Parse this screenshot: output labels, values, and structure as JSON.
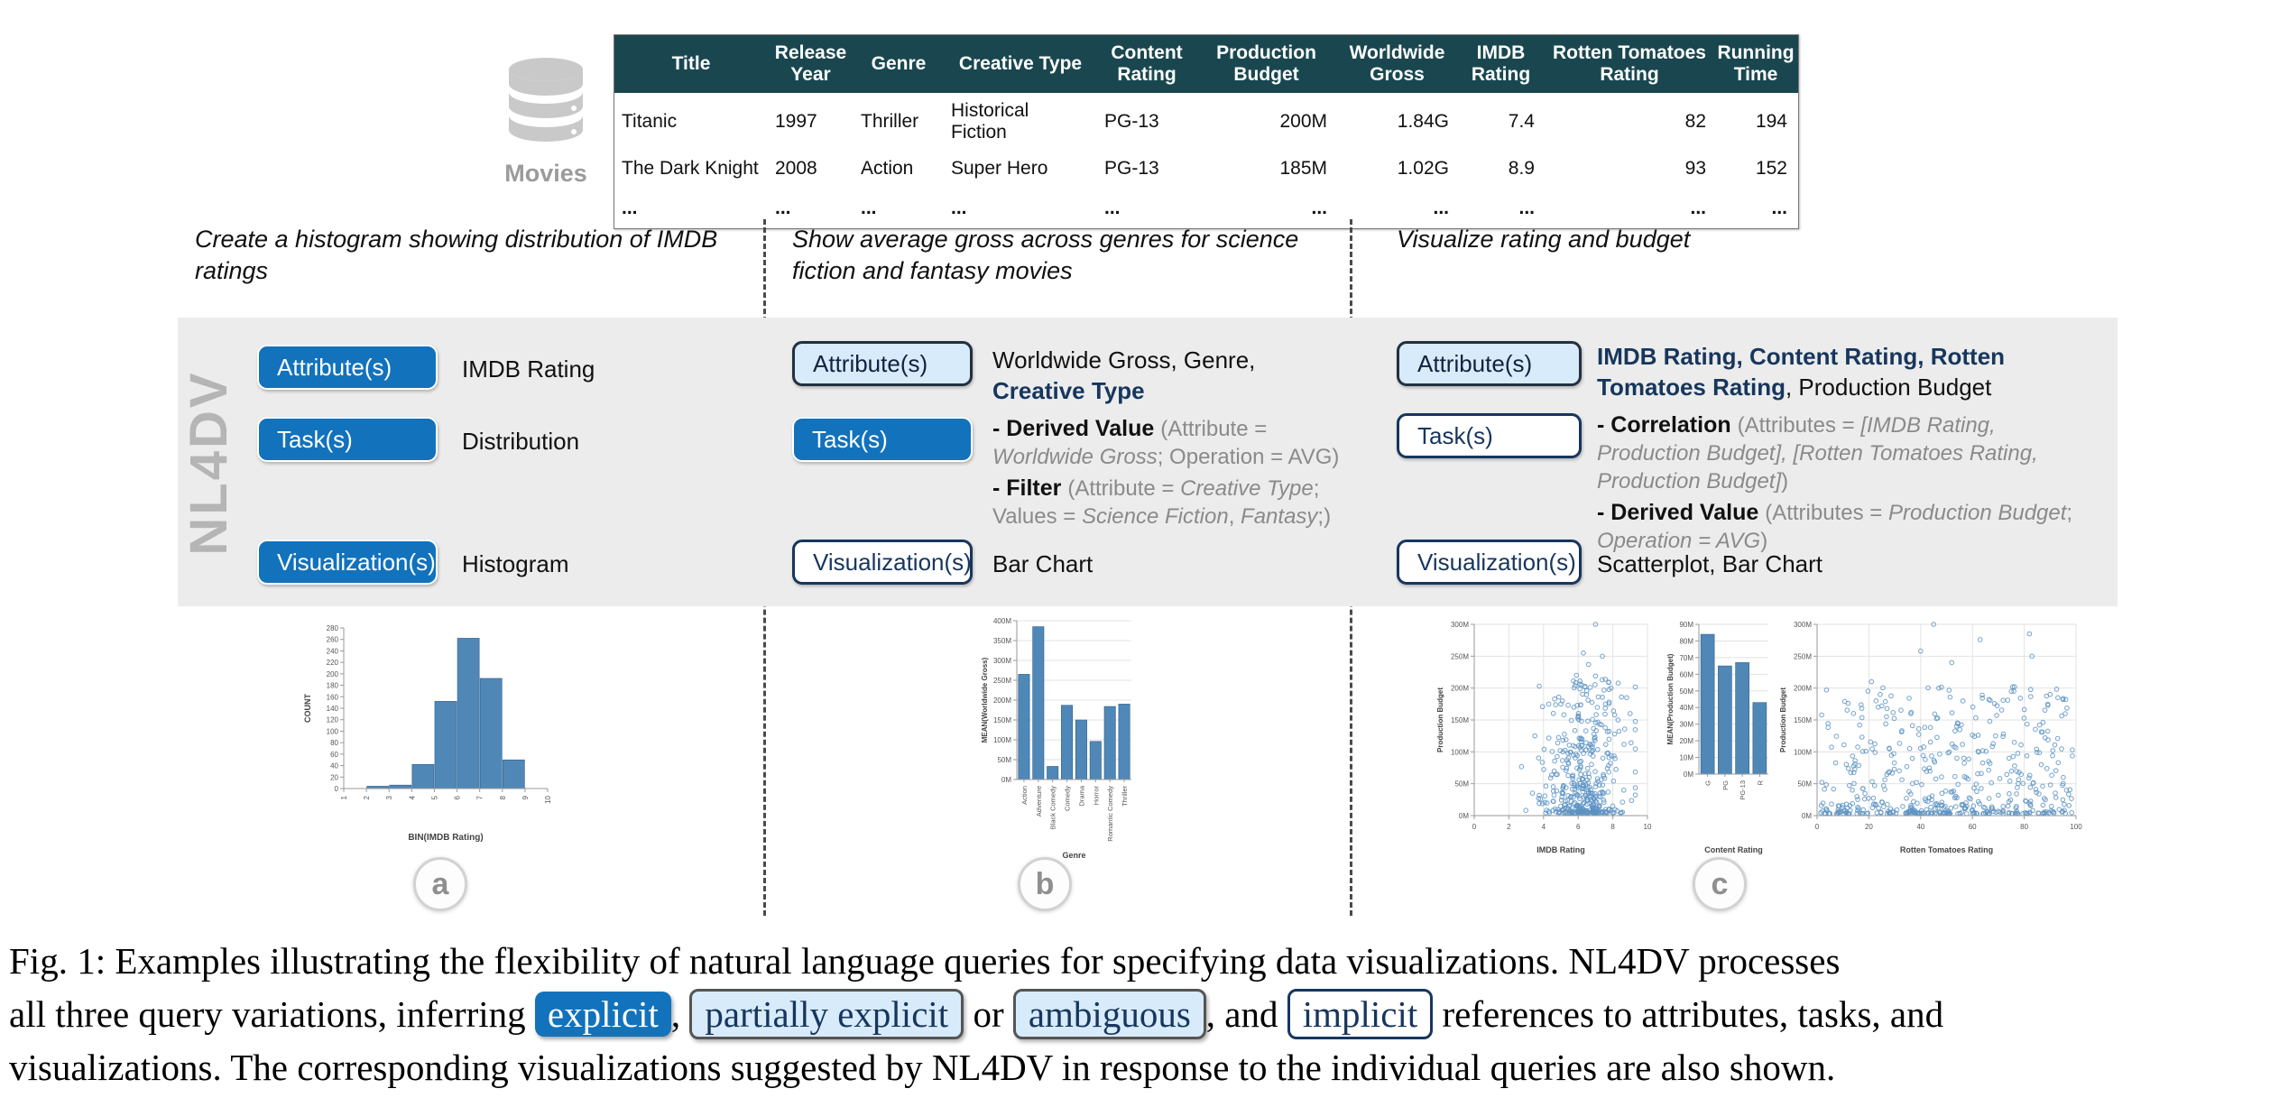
{
  "dataset": {
    "name": "Movies",
    "columns": [
      "Title",
      "Release Year",
      "Genre",
      "Creative Type",
      "Content Rating",
      "Production Budget",
      "Worldwide Gross",
      "IMDB Rating",
      "Rotten Tomatoes Rating",
      "Running Time"
    ],
    "rows": [
      [
        "Titanic",
        "1997",
        "Thriller",
        "Historical Fiction",
        "PG-13",
        "200M",
        "1.84G",
        "7.4",
        "82",
        "194"
      ],
      [
        "The Dark Knight",
        "2008",
        "Action",
        "Super Hero",
        "PG-13",
        "185M",
        "1.02G",
        "8.9",
        "93",
        "152"
      ],
      [
        "...",
        "...",
        "...",
        "...",
        "...",
        "...",
        "...",
        "...",
        "...",
        "..."
      ]
    ]
  },
  "system_label": "NL4DV",
  "box_labels": {
    "attributes": "Attribute(s)",
    "tasks": "Task(s)",
    "visualizations": "Visualization(s)"
  },
  "columns": [
    {
      "badge": "a",
      "query": "Create a histogram showing distribution of IMDB ratings",
      "box_styles": {
        "attributes": "explicit-solid",
        "tasks": "explicit-solid",
        "visualizations": "explicit-solid"
      },
      "attributes_value": [
        {
          "t": "IMDB Rating"
        }
      ],
      "tasks_value": [
        [
          {
            "t": "Distribution"
          }
        ]
      ],
      "visualizations_value": [
        {
          "t": "Histogram"
        }
      ]
    },
    {
      "badge": "b",
      "query": "Show average gross across genres for science fiction and fantasy movies",
      "box_styles": {
        "attributes": "partially-explicit-light",
        "tasks": "explicit-solid",
        "visualizations": "implicit-outline"
      },
      "attributes_value": [
        {
          "t": "Worldwide Gross, Genre,"
        },
        {
          "t": "\n"
        },
        {
          "t": "Creative Type",
          "s": "nb"
        }
      ],
      "tasks_value": [
        [
          {
            "t": "- Derived Value ",
            "s": "b"
          },
          {
            "t": "(Attribute = ",
            "s": "g"
          },
          {
            "t": "Worldwide Gross",
            "s": "gi"
          },
          {
            "t": "; Operation = AVG)",
            "s": "g"
          }
        ],
        [
          {
            "t": "- Filter ",
            "s": "b"
          },
          {
            "t": "(Attribute = ",
            "s": "g"
          },
          {
            "t": "Creative Type",
            "s": "gi"
          },
          {
            "t": "; Values = ",
            "s": "g"
          },
          {
            "t": "Science Fiction",
            "s": "gi"
          },
          {
            "t": ", ",
            "s": "g"
          },
          {
            "t": "Fantasy",
            "s": "gi"
          },
          {
            "t": ";)",
            "s": "g"
          }
        ]
      ],
      "visualizations_value": [
        {
          "t": "Bar Chart"
        }
      ]
    },
    {
      "badge": "c",
      "query": "Visualize rating and budget",
      "box_styles": {
        "attributes": "ambiguous-light",
        "tasks": "implicit-outline",
        "visualizations": "implicit-outline"
      },
      "attributes_value": [
        {
          "t": "IMDB Rating, Content Rating, Rotten Tomatoes Rating",
          "s": "nb"
        },
        {
          "t": ", Production Budget"
        }
      ],
      "tasks_value": [
        [
          {
            "t": "- Correlation ",
            "s": "b"
          },
          {
            "t": "(Attributes = ",
            "s": "g"
          },
          {
            "t": "[IMDB Rating, Production Budget], [Rotten Tomatoes Rating, Production Budget]",
            "s": "gi"
          },
          {
            "t": ")",
            "s": "g"
          }
        ],
        [
          {
            "t": "- Derived Value ",
            "s": "b"
          },
          {
            "t": "(Attributes = ",
            "s": "g"
          },
          {
            "t": "Production Budget",
            "s": "gi"
          },
          {
            "t": "; ",
            "s": "g"
          },
          {
            "t": "Operation = AVG",
            "s": "gi"
          },
          {
            "t": ")",
            "s": "g"
          }
        ]
      ],
      "visualizations_value": [
        {
          "t": "Scatterplot, Bar Chart"
        }
      ]
    }
  ],
  "chart_data": [
    {
      "id": "histogram-imdb-rating",
      "type": "bar",
      "subtype": "histogram",
      "title": "",
      "xlabel": "BIN(IMDB Rating)",
      "ylabel": "COUNT",
      "bin_edges": [
        1,
        2,
        3,
        4,
        5,
        6,
        7,
        8,
        9,
        10
      ],
      "values": [
        0,
        4,
        6,
        42,
        152,
        262,
        192,
        50,
        0
      ],
      "ylim": [
        0,
        280
      ],
      "y_step": 20,
      "x_ticks": [
        1,
        2,
        3,
        4,
        5,
        6,
        7,
        8,
        9,
        10
      ],
      "grid": false
    },
    {
      "id": "bar-mean-gross-by-genre",
      "type": "bar",
      "title": "",
      "xlabel": "Genre",
      "ylabel": "MEAN(Worldwide Gross)",
      "categories": [
        "Action",
        "Adventure",
        "Black Comedy",
        "Comedy",
        "Drama",
        "Horror",
        "Romantic Comedy",
        "Thriller"
      ],
      "values": [
        265,
        385,
        33,
        187,
        150,
        96,
        184,
        190
      ],
      "unit": "M",
      "ylim": [
        0,
        400
      ],
      "y_step": 50,
      "grid": true
    },
    {
      "id": "scatter-imdb-vs-budget",
      "type": "scatter",
      "title": "",
      "xlabel": "IMDB Rating",
      "ylabel": "Production Budget",
      "xlim": [
        0,
        10
      ],
      "x_step": 2,
      "ylim": [
        0,
        300
      ],
      "y_step": 50,
      "y_unit": "M",
      "grid": true,
      "points_spec": {
        "seed": 7,
        "n": 430,
        "x_dist": {
          "type": "gauss",
          "mean": 6.35,
          "sd": 1.15,
          "min": 1.6,
          "max": 9.3
        },
        "y_dist": {
          "type": "power",
          "pow": 2.6,
          "max": 210,
          "offset": 4
        }
      },
      "outliers": [
        [
          7.0,
          300
        ],
        [
          6.3,
          255
        ],
        [
          7.4,
          250
        ],
        [
          6.6,
          237
        ],
        [
          5.9,
          220
        ],
        [
          7.0,
          219
        ],
        [
          6.2,
          205
        ],
        [
          6.7,
          201
        ],
        [
          7.9,
          200
        ],
        [
          4.3,
          175
        ],
        [
          5.0,
          175
        ],
        [
          4.7,
          174
        ],
        [
          8.5,
          186
        ],
        [
          8.8,
          185
        ],
        [
          9.0,
          160
        ],
        [
          8.3,
          150
        ],
        [
          3.5,
          125
        ],
        [
          8.1,
          128
        ]
      ]
    },
    {
      "id": "bar-mean-budget-by-content-rating",
      "type": "bar",
      "title": "",
      "xlabel": "Content Rating",
      "ylabel": "MEAN(Production Budget)",
      "categories": [
        "G",
        "PG",
        "PG-13",
        "R"
      ],
      "values": [
        84,
        65,
        67,
        43
      ],
      "unit": "M",
      "ylim": [
        0,
        90
      ],
      "y_step": 10,
      "grid": true
    },
    {
      "id": "scatter-rt-vs-budget",
      "type": "scatter",
      "title": "",
      "xlabel": "Rotten Tomatoes Rating",
      "ylabel": "Production Budget",
      "xlim": [
        0,
        100
      ],
      "x_step": 20,
      "ylim": [
        0,
        300
      ],
      "y_step": 50,
      "y_unit": "M",
      "grid": true,
      "points_spec": {
        "seed": 13,
        "n": 520,
        "x_dist": {
          "type": "uniform",
          "min": 1,
          "max": 99
        },
        "y_dist": {
          "type": "power",
          "pow": 2.6,
          "max": 200,
          "offset": 3
        }
      },
      "outliers": [
        [
          45,
          300
        ],
        [
          82,
          285
        ],
        [
          63,
          276
        ],
        [
          83,
          250
        ],
        [
          40,
          258
        ],
        [
          52,
          240
        ],
        [
          21,
          210
        ],
        [
          47,
          200
        ],
        [
          75,
          195
        ],
        [
          90,
          190
        ],
        [
          93,
          185
        ],
        [
          95,
          182
        ],
        [
          12,
          176
        ],
        [
          25,
          172
        ],
        [
          27,
          168
        ]
      ]
    }
  ],
  "caption": {
    "line1": [
      {
        "t": "Fig. 1:  Examples illustrating the flexibility of natural language queries for specifying data visualizations.  NL4DV processes"
      }
    ],
    "line2": [
      {
        "t": "all three query variations, inferring "
      },
      {
        "t": "explicit",
        "s": "c1"
      },
      {
        "t": ", "
      },
      {
        "t": "partially explicit",
        "s": "c2"
      },
      {
        "t": " or "
      },
      {
        "t": "ambiguous",
        "s": "c2"
      },
      {
        "t": ", and "
      },
      {
        "t": "implicit",
        "s": "c3"
      },
      {
        "t": " references to attributes, tasks, and"
      }
    ],
    "line3": [
      {
        "t": "visualizations. The corresponding visualizations suggested by NL4DV in response to the individual queries are also shown."
      }
    ]
  },
  "colors": {
    "explicit_blue": "#1272bc",
    "light_blue": "#d7ebfb",
    "navy": "#17365d",
    "table_header_teal": "#1a474f",
    "panel_gray": "#ececec",
    "chart_bar_blue": "#4f88b7",
    "scatter_stroke_blue": "#5b92c3",
    "muted_gray": "#8a8a8a"
  }
}
